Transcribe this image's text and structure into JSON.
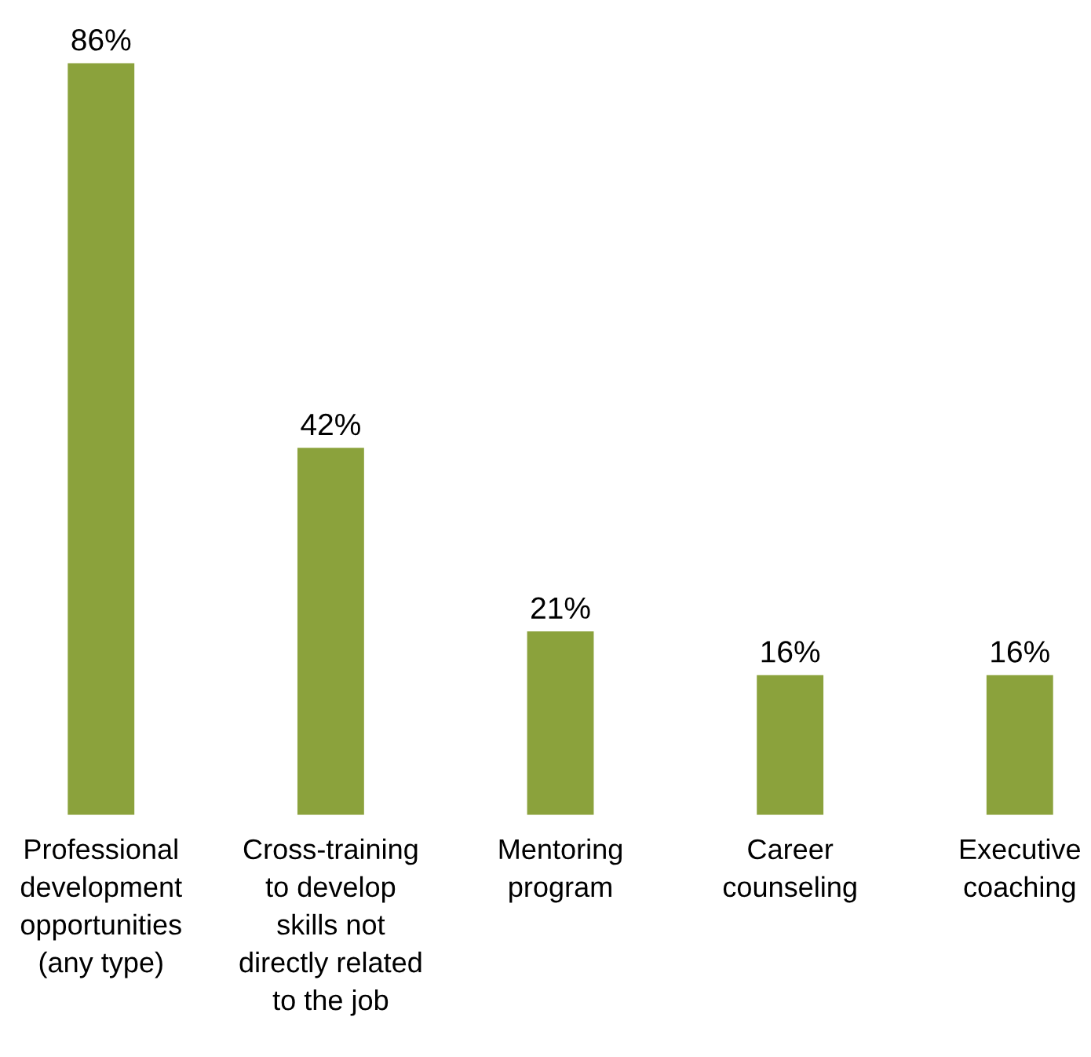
{
  "chart_data": {
    "type": "bar",
    "categories": [
      "Professional\ndevelopment\nopportunities\n(any type)",
      "Cross-training\nto develop\nskills not\ndirectly related\nto the job",
      "Mentoring\nprogram",
      "Career\ncounseling",
      "Executive\ncoaching"
    ],
    "values": [
      86,
      42,
      21,
      16,
      16
    ],
    "value_labels": [
      "86%",
      "42%",
      "21%",
      "16%",
      "16%"
    ],
    "color": "#8ba23c"
  }
}
